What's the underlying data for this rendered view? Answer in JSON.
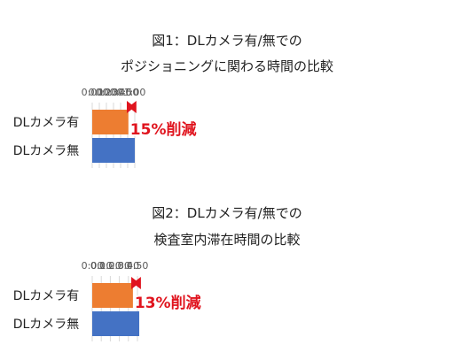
{
  "chart_data": [
    {
      "type": "bar",
      "orientation": "horizontal",
      "title_lines": [
        "図1：DLカメラ有/無での",
        "ポジショニングに関わる時間の比較"
      ],
      "categories": [
        "DLカメラ有",
        "DLカメラ無"
      ],
      "values": [
        "0:51",
        "1:00"
      ],
      "xlim": [
        "0:00",
        "1:00"
      ],
      "ticks": [
        "0:00",
        "0:10",
        "0:20",
        "0:30",
        "0:40",
        "0:50",
        "1:00"
      ],
      "axis_position": "top",
      "grid": true,
      "bar_colors": [
        "#ed7d31",
        "#4472c4"
      ],
      "annotation": {
        "text": "15%削減",
        "color": "#e0141e"
      }
    },
    {
      "type": "bar",
      "orientation": "horizontal",
      "title_lines": [
        "図2：DLカメラ有/無での",
        "検査室内滞在時間の比較"
      ],
      "categories": [
        "DLカメラ有",
        "DLカメラ無"
      ],
      "values": [
        "0:45",
        "0:52"
      ],
      "xlim": [
        "0:00",
        "0:55"
      ],
      "ticks": [
        "0:00",
        "0:10",
        "0:20",
        "0:30",
        "0:40",
        "0:50"
      ],
      "axis_position": "top",
      "grid": true,
      "bar_colors": [
        "#ed7d31",
        "#4472c4"
      ],
      "annotation": {
        "text": "13%削減",
        "color": "#e0141e"
      }
    }
  ]
}
